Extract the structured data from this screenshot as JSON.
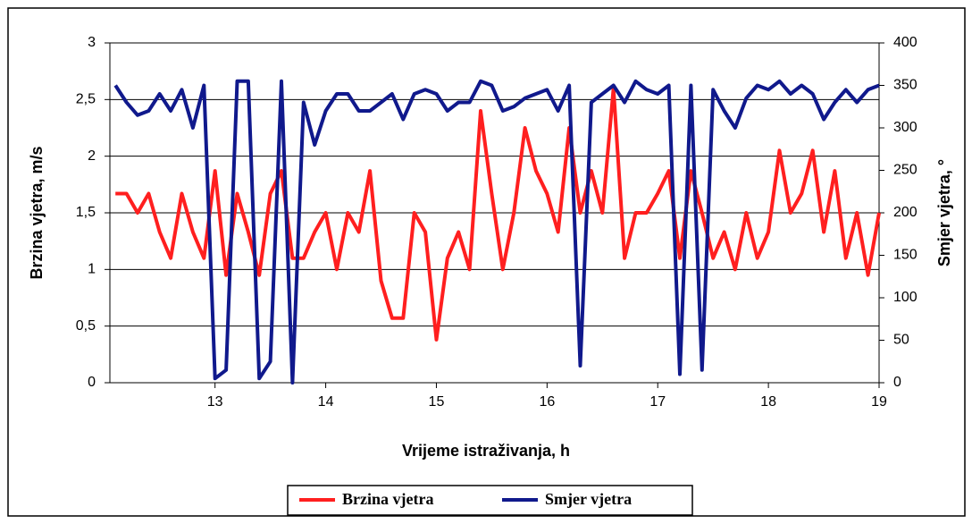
{
  "chart_data": {
    "type": "line",
    "x_label": "Vrijeme istraživanja, h",
    "y_label": "Brzina vjetra, m/s",
    "y2_label": "Smjer vjetra, °",
    "x": [
      12.1,
      12.2,
      12.3,
      12.4,
      12.5,
      12.6,
      12.7,
      12.8,
      12.9,
      13.0,
      13.1,
      13.2,
      13.3,
      13.4,
      13.5,
      13.6,
      13.7,
      13.8,
      13.9,
      14.0,
      14.1,
      14.2,
      14.3,
      14.4,
      14.5,
      14.6,
      14.7,
      14.8,
      14.9,
      15.0,
      15.1,
      15.2,
      15.3,
      15.4,
      15.5,
      15.6,
      15.7,
      15.8,
      15.9,
      16.0,
      16.1,
      16.2,
      16.3,
      16.4,
      16.5,
      16.6,
      16.7,
      16.8,
      16.9,
      17.0,
      17.1,
      17.2,
      17.3,
      17.4,
      17.5,
      17.6,
      17.7,
      17.8,
      17.9,
      18.0,
      18.1,
      18.2,
      18.3,
      18.4,
      18.5,
      18.6,
      18.7,
      18.8,
      18.9,
      19.0
    ],
    "series": [
      {
        "name": "Brzina vjetra",
        "color": "#ff1f1f",
        "axis": "y",
        "values": [
          1.67,
          1.67,
          1.5,
          1.67,
          1.33,
          1.1,
          1.67,
          1.33,
          1.1,
          1.87,
          0.95,
          1.67,
          1.33,
          0.95,
          1.67,
          1.87,
          1.1,
          1.1,
          1.33,
          1.5,
          1.0,
          1.5,
          1.33,
          1.87,
          0.9,
          0.57,
          0.57,
          1.5,
          1.33,
          0.38,
          1.1,
          1.33,
          1.0,
          2.4,
          1.67,
          1.0,
          1.5,
          2.25,
          1.87,
          1.67,
          1.33,
          2.25,
          1.5,
          1.87,
          1.5,
          2.6,
          1.1,
          1.5,
          1.5,
          1.67,
          1.87,
          1.1,
          1.87,
          1.5,
          1.1,
          1.33,
          1.0,
          1.5,
          1.1,
          1.33,
          2.05,
          1.5,
          1.67,
          2.05,
          1.33,
          1.87,
          1.1,
          1.5,
          0.95,
          1.5
        ]
      },
      {
        "name": "Smjer vjetra",
        "color": "#10198c",
        "axis": "y2",
        "values": [
          350,
          330,
          315,
          320,
          340,
          320,
          345,
          300,
          350,
          5,
          15,
          355,
          355,
          5,
          25,
          355,
          0,
          330,
          280,
          320,
          340,
          340,
          320,
          320,
          330,
          340,
          310,
          340,
          345,
          340,
          320,
          330,
          330,
          355,
          350,
          320,
          325,
          335,
          340,
          345,
          320,
          350,
          20,
          330,
          340,
          350,
          330,
          355,
          345,
          340,
          350,
          10,
          350,
          15,
          345,
          320,
          300,
          335,
          350,
          345,
          355,
          340,
          350,
          340,
          310,
          330,
          345,
          330,
          345,
          350
        ]
      }
    ],
    "xlim": [
      12.05,
      19
    ],
    "xticks": [
      13,
      14,
      15,
      16,
      17,
      18,
      19
    ],
    "ylim": [
      0,
      3
    ],
    "yticks": [
      0,
      {
        "value": 0.5,
        "label": "0,5"
      },
      1,
      {
        "value": 1.5,
        "label": "1,5"
      },
      2,
      {
        "value": 2.5,
        "label": "2,5"
      },
      3
    ],
    "y2lim": [
      0,
      400
    ],
    "y2ticks": [
      0,
      50,
      100,
      150,
      200,
      250,
      300,
      350,
      400
    ],
    "grid": true,
    "legend": "bottom"
  }
}
